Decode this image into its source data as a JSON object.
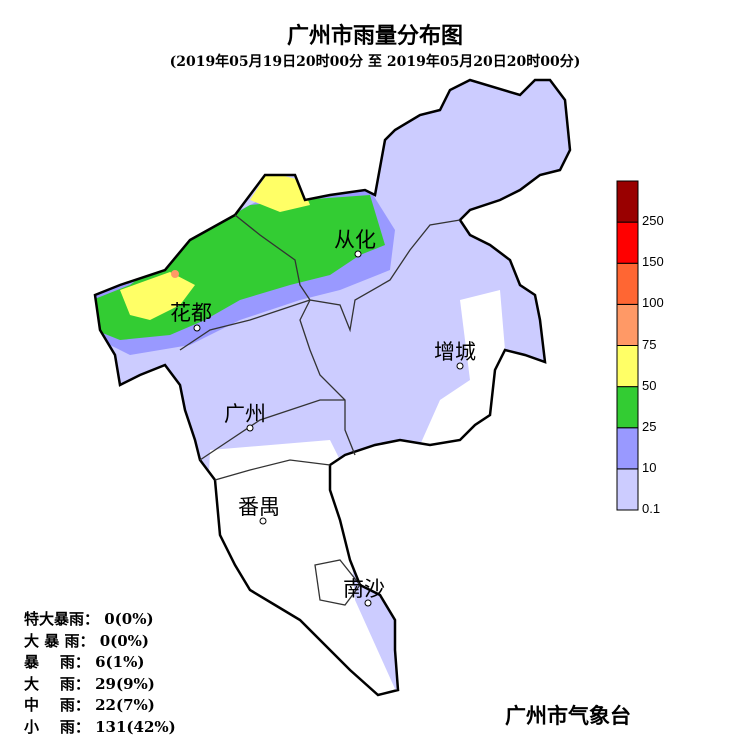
{
  "title": "广州市雨量分布图",
  "subtitle": "(2019年05月19日20时00分 至 2019年05月20日20时00分)",
  "towns": [
    {
      "name": "从化"
    },
    {
      "name": "花都"
    },
    {
      "name": "增城"
    },
    {
      "name": "广州"
    },
    {
      "name": "番禺"
    },
    {
      "name": "南沙"
    }
  ],
  "legend": {
    "colors": [
      "#ccccff",
      "#9999ff",
      "#33cc33",
      "#ffff66",
      "#ff9966",
      "#ff6633",
      "#ff0000",
      "#990000"
    ],
    "labels": [
      "0.1",
      "10",
      "25",
      "50",
      "75",
      "100",
      "150",
      "250"
    ]
  },
  "stats": [
    {
      "label": "特大暴雨：",
      "value": "0(0%)"
    },
    {
      "label": "大 暴 雨：",
      "value": "0(0%)"
    },
    {
      "label": "暴    雨：",
      "value": "6(1%)"
    },
    {
      "label": "大    雨：",
      "value": "29(9%)"
    },
    {
      "label": "中    雨：",
      "value": "22(7%)"
    },
    {
      "label": "小    雨：",
      "value": "131(42%)"
    }
  ],
  "footer": "广州市气象台"
}
